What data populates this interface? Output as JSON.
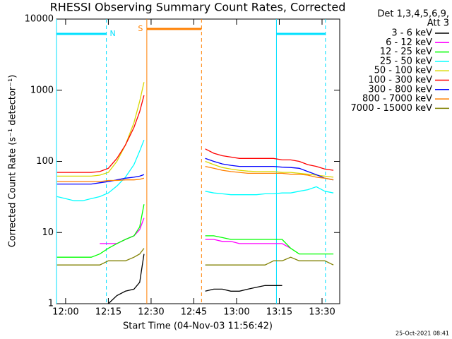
{
  "chart_data": {
    "type": "line",
    "title": "RHESSI Observing Summary Count Rates, Corrected",
    "x_label": "Start Time (04-Nov-03 11:56:42)",
    "y_label": "Corrected Count Rate (s⁻¹ detector⁻¹)",
    "legend_title": [
      "Det 1,3,4,5,6,9,",
      "Att 3"
    ],
    "footer": "25-Oct-2021 08:41",
    "log_y": true,
    "xlim": [
      -3.2,
      96.2
    ],
    "ylim": [
      1,
      10000
    ],
    "xticks": [
      {
        "value": 0,
        "label": "12:00"
      },
      {
        "value": 15,
        "label": "12:15"
      },
      {
        "value": 30,
        "label": "12:30"
      },
      {
        "value": 45,
        "label": "12:45"
      },
      {
        "value": 60,
        "label": "13:00"
      },
      {
        "value": 75,
        "label": "13:15"
      },
      {
        "value": 90,
        "label": "13:30"
      }
    ],
    "yticks": [
      1,
      10,
      100,
      1000,
      10000
    ],
    "intervals": [
      {
        "label": "N",
        "color": "#00e0ff",
        "start": -3.2,
        "end": 14.3
      },
      {
        "label": "S",
        "color": "#ff8000",
        "start": 28.5,
        "end": 47.7
      },
      {
        "color": "#00e0ff",
        "start": 74,
        "end": 91.2
      }
    ],
    "x": [
      -3,
      0,
      3,
      6,
      9,
      12,
      15,
      18,
      21,
      24,
      26,
      27.5,
      38,
      49,
      52,
      55,
      58,
      61,
      64,
      67,
      70,
      73,
      76,
      79,
      82,
      85,
      88,
      91,
      94
    ],
    "series": [
      {
        "name": "3 - 6 keV",
        "color": "#000000",
        "values": [
          null,
          null,
          null,
          null,
          null,
          null,
          1,
          1.3,
          1.5,
          1.6,
          2,
          5,
          null,
          1.5,
          1.6,
          1.6,
          1.5,
          1.5,
          1.6,
          1.7,
          1.8,
          1.8,
          1.8,
          null,
          null,
          null,
          null,
          null,
          null
        ]
      },
      {
        "name": "6 - 12 keV",
        "color": "#ff00ff",
        "values": [
          null,
          null,
          null,
          null,
          null,
          7,
          7,
          7,
          8,
          9,
          11,
          16,
          null,
          8,
          8,
          7.5,
          7.5,
          7,
          7,
          7,
          7,
          7,
          7,
          6,
          null,
          null,
          null,
          null,
          null
        ]
      },
      {
        "name": "12 - 25 keV",
        "color": "#00ff00",
        "values": [
          4.5,
          4.5,
          4.5,
          4.5,
          4.5,
          5,
          6,
          7,
          8,
          9,
          12,
          25,
          null,
          9,
          9,
          8.5,
          8,
          8,
          8,
          8,
          8,
          8,
          8,
          6,
          5,
          5,
          5,
          5,
          5
        ]
      },
      {
        "name": "25 - 50 keV",
        "color": "#00ffff",
        "values": [
          32,
          30,
          28,
          28,
          30,
          32,
          36,
          45,
          60,
          90,
          140,
          200,
          null,
          38,
          36,
          35,
          34,
          34,
          34,
          34,
          35,
          35,
          36,
          36,
          38,
          40,
          44,
          38,
          36
        ]
      },
      {
        "name": "50 - 100 keV",
        "color": "#d8d800",
        "values": [
          62,
          62,
          62,
          62,
          62,
          64,
          70,
          100,
          170,
          350,
          700,
          1300,
          null,
          100,
          90,
          82,
          78,
          75,
          73,
          72,
          72,
          72,
          70,
          70,
          68,
          66,
          64,
          62,
          60
        ]
      },
      {
        "name": "100 - 300 keV",
        "color": "#ff0000",
        "values": [
          70,
          70,
          70,
          70,
          70,
          72,
          80,
          110,
          170,
          300,
          500,
          850,
          null,
          150,
          130,
          120,
          115,
          110,
          110,
          110,
          110,
          110,
          105,
          105,
          100,
          90,
          85,
          78,
          75
        ]
      },
      {
        "name": "300 - 800 keV",
        "color": "#0000ff",
        "values": [
          48,
          48,
          48,
          48,
          48,
          50,
          52,
          55,
          58,
          60,
          62,
          65,
          null,
          110,
          100,
          92,
          88,
          85,
          85,
          85,
          85,
          85,
          83,
          82,
          80,
          72,
          65,
          58,
          55
        ]
      },
      {
        "name": "800 - 7000 keV",
        "color": "#ff8000",
        "values": [
          52,
          52,
          52,
          52,
          52,
          52,
          54,
          54,
          55,
          55,
          56,
          58,
          null,
          85,
          80,
          75,
          72,
          70,
          68,
          68,
          68,
          68,
          68,
          66,
          66,
          64,
          60,
          58,
          55
        ]
      },
      {
        "name": "7000 - 15000 keV",
        "color": "#808000",
        "values": [
          3.5,
          3.5,
          3.5,
          3.5,
          3.5,
          3.5,
          4,
          4,
          4,
          4.5,
          5,
          6,
          null,
          3.5,
          3.5,
          3.5,
          3.5,
          3.5,
          3.5,
          3.5,
          3.5,
          4,
          4,
          4.5,
          4,
          4,
          4,
          4,
          3.5
        ]
      }
    ]
  }
}
